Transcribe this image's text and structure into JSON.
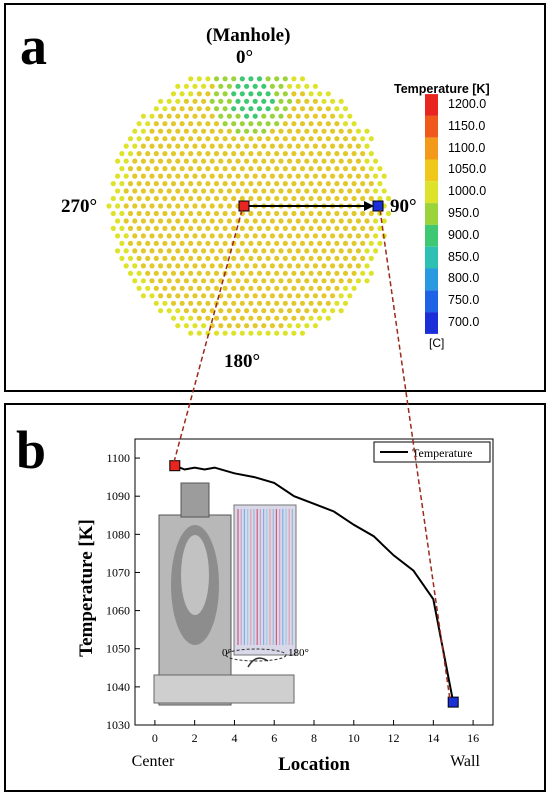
{
  "panel_a": {
    "letter": "a",
    "manhole_label": "(Manhole)",
    "angle_top": "0°",
    "angle_right": "90°",
    "angle_bottom": "180°",
    "angle_left": "270°",
    "colorbar": {
      "title": "Temperature  [K]",
      "ticks": [
        "1200.0",
        "1150.0",
        "1100.0",
        "1050.0",
        "1000.0",
        "950.0",
        "900.0",
        "850.0",
        "800.0",
        "750.0",
        "700.0"
      ],
      "unit": "[C]",
      "colors": [
        "#e8251e",
        "#ef5a1c",
        "#f39a1a",
        "#f0c81c",
        "#dde32a",
        "#9bd43a",
        "#3fc873",
        "#2ec0b3",
        "#2a9ae0",
        "#1e62e6",
        "#1a2fd8"
      ]
    },
    "marker_colors": {
      "center": "#e8251e",
      "wall": "#1a2fd8"
    }
  },
  "panel_b": {
    "letter": "b",
    "inset_labels": {
      "left": "0°",
      "right": "180°"
    },
    "chart_data": {
      "type": "line",
      "title": "",
      "xlabel": "Location",
      "ylabel": "Temperature [K]",
      "xlim": [
        -1,
        17
      ],
      "ylim": [
        1030,
        1105
      ],
      "xticks": [
        0,
        2,
        4,
        6,
        8,
        10,
        12,
        14,
        16
      ],
      "yticks": [
        1030,
        1040,
        1050,
        1060,
        1070,
        1080,
        1090,
        1100
      ],
      "x_end_labels": {
        "left": "Center",
        "right": "Wall"
      },
      "legend": {
        "placement": "top-right",
        "entries": [
          "Temperature"
        ]
      },
      "grid": false,
      "series": [
        {
          "name": "Temperature",
          "color": "#000000",
          "x": [
            1,
            1.5,
            2,
            2.5,
            3,
            4,
            5,
            6,
            7,
            8,
            9,
            10,
            11,
            12,
            13,
            14,
            15
          ],
          "y": [
            1098,
            1097,
            1097.5,
            1097,
            1097.5,
            1096,
            1095,
            1093.5,
            1090,
            1088,
            1086,
            1082.5,
            1079.5,
            1074.5,
            1070.5,
            1063,
            1036
          ]
        }
      ],
      "markers": [
        {
          "x": 1,
          "y": 1098,
          "color": "#e8251e"
        },
        {
          "x": 15,
          "y": 1036,
          "color": "#1a2fd8"
        }
      ]
    }
  }
}
